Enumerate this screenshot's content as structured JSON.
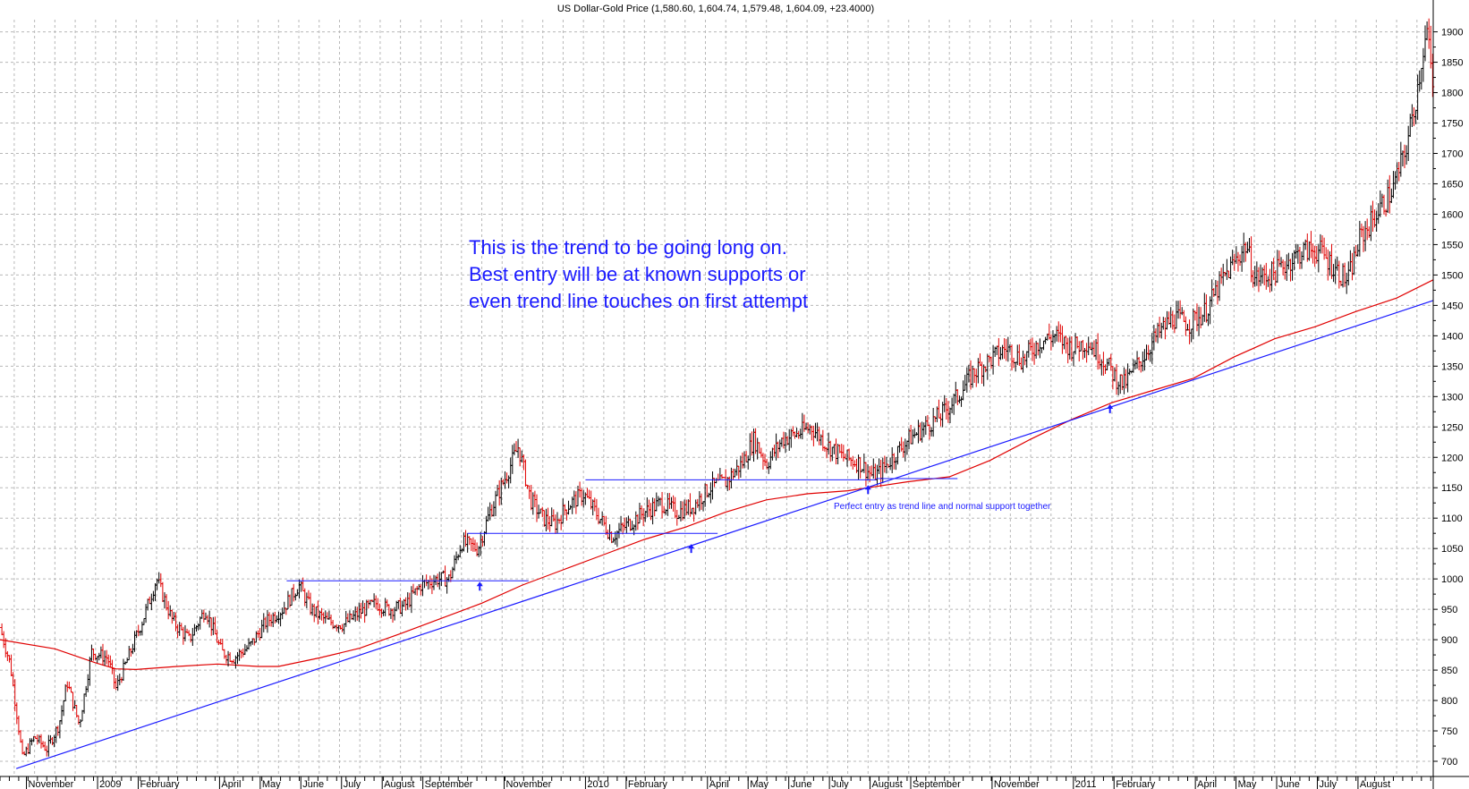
{
  "colors": {
    "up_bar": "#000000",
    "down_bar": "#e00000",
    "moving_average": "#e00000",
    "trend_line": "#1a1aff",
    "support_lines": "#1a1aff",
    "annotation": "#1a1aff",
    "grid": "#b8b8b8"
  },
  "chart_data": {
    "type": "candlestick",
    "title": "US Dollar-Gold Price (1,580.60, 1,604.74, 1,579.48, 1,604.09, +23.4000)",
    "ylim": [
      675,
      1920
    ],
    "y_ticks": [
      700,
      750,
      800,
      850,
      900,
      950,
      1000,
      1050,
      1100,
      1150,
      1200,
      1250,
      1300,
      1350,
      1400,
      1450,
      1500,
      1550,
      1600,
      1650,
      1700,
      1750,
      1800,
      1850,
      1900
    ],
    "x_range_months": [
      -0.35,
      34.9
    ],
    "x_labels": [
      {
        "label": "November",
        "m": 0.3
      },
      {
        "label": "2009",
        "m": 2.05
      },
      {
        "label": "February",
        "m": 3.05
      },
      {
        "label": "April",
        "m": 5.05
      },
      {
        "label": "May",
        "m": 6.05
      },
      {
        "label": "June",
        "m": 7.05
      },
      {
        "label": "July",
        "m": 8.05
      },
      {
        "label": "August",
        "m": 9.05
      },
      {
        "label": "September",
        "m": 10.05
      },
      {
        "label": "November",
        "m": 12.05
      },
      {
        "label": "2010",
        "m": 14.05
      },
      {
        "label": "February",
        "m": 15.05
      },
      {
        "label": "April",
        "m": 17.05
      },
      {
        "label": "May",
        "m": 18.05
      },
      {
        "label": "June",
        "m": 19.05
      },
      {
        "label": "July",
        "m": 20.05
      },
      {
        "label": "August",
        "m": 21.05
      },
      {
        "label": "September",
        "m": 22.05
      },
      {
        "label": "November",
        "m": 24.05
      },
      {
        "label": "2011",
        "m": 26.05
      },
      {
        "label": "February",
        "m": 27.05
      },
      {
        "label": "April",
        "m": 29.05
      },
      {
        "label": "May",
        "m": 30.05
      },
      {
        "label": "June",
        "m": 31.05
      },
      {
        "label": "July",
        "m": 32.05
      },
      {
        "label": "August",
        "m": 33.05
      }
    ],
    "price_path": [
      [
        -0.35,
        920
      ],
      [
        -0.1,
        860
      ],
      [
        0.1,
        760
      ],
      [
        0.2,
        705
      ],
      [
        0.5,
        740
      ],
      [
        0.8,
        720
      ],
      [
        1.1,
        760
      ],
      [
        1.3,
        830
      ],
      [
        1.6,
        760
      ],
      [
        1.9,
        880
      ],
      [
        2.3,
        870
      ],
      [
        2.5,
        820
      ],
      [
        2.8,
        870
      ],
      [
        3.2,
        940
      ],
      [
        3.5,
        1000
      ],
      [
        3.9,
        930
      ],
      [
        4.3,
        900
      ],
      [
        4.7,
        950
      ],
      [
        5.1,
        880
      ],
      [
        5.4,
        870
      ],
      [
        5.8,
        890
      ],
      [
        6.2,
        930
      ],
      [
        6.6,
        950
      ],
      [
        7.0,
        990
      ],
      [
        7.3,
        950
      ],
      [
        7.7,
        930
      ],
      [
        8.1,
        925
      ],
      [
        8.5,
        945
      ],
      [
        8.9,
        960
      ],
      [
        9.2,
        950
      ],
      [
        9.6,
        955
      ],
      [
        10.0,
        990
      ],
      [
        10.4,
        1000
      ],
      [
        10.7,
        1000
      ],
      [
        11.0,
        1060
      ],
      [
        11.4,
        1050
      ],
      [
        11.7,
        1110
      ],
      [
        12.1,
        1170
      ],
      [
        12.4,
        1218
      ],
      [
        12.7,
        1130
      ],
      [
        13.0,
        1100
      ],
      [
        13.3,
        1090
      ],
      [
        13.6,
        1120
      ],
      [
        14.0,
        1140
      ],
      [
        14.3,
        1110
      ],
      [
        14.7,
        1070
      ],
      [
        15.1,
        1090
      ],
      [
        15.5,
        1110
      ],
      [
        15.9,
        1125
      ],
      [
        16.3,
        1110
      ],
      [
        16.7,
        1120
      ],
      [
        17.1,
        1150
      ],
      [
        17.5,
        1160
      ],
      [
        17.9,
        1190
      ],
      [
        18.2,
        1230
      ],
      [
        18.5,
        1190
      ],
      [
        18.9,
        1230
      ],
      [
        19.3,
        1240
      ],
      [
        19.6,
        1250
      ],
      [
        20.0,
        1220
      ],
      [
        20.4,
        1200
      ],
      [
        20.8,
        1190
      ],
      [
        21.1,
        1170
      ],
      [
        21.3,
        1175
      ],
      [
        21.6,
        1200
      ],
      [
        22.0,
        1230
      ],
      [
        22.4,
        1250
      ],
      [
        22.8,
        1270
      ],
      [
        23.2,
        1300
      ],
      [
        23.6,
        1340
      ],
      [
        24.0,
        1360
      ],
      [
        24.4,
        1380
      ],
      [
        24.8,
        1360
      ],
      [
        25.2,
        1390
      ],
      [
        25.6,
        1400
      ],
      [
        26.0,
        1380
      ],
      [
        26.4,
        1390
      ],
      [
        26.8,
        1360
      ],
      [
        27.1,
        1330
      ],
      [
        27.3,
        1320
      ],
      [
        27.7,
        1360
      ],
      [
        28.1,
        1400
      ],
      [
        28.5,
        1430
      ],
      [
        28.9,
        1420
      ],
      [
        29.3,
        1440
      ],
      [
        29.7,
        1490
      ],
      [
        30.0,
        1520
      ],
      [
        30.3,
        1550
      ],
      [
        30.5,
        1495
      ],
      [
        30.9,
        1500
      ],
      [
        31.3,
        1520
      ],
      [
        31.7,
        1540
      ],
      [
        32.1,
        1540
      ],
      [
        32.5,
        1510
      ],
      [
        32.8,
        1490
      ],
      [
        33.1,
        1560
      ],
      [
        33.5,
        1600
      ],
      [
        33.9,
        1640
      ],
      [
        34.2,
        1700
      ],
      [
        34.45,
        1780
      ],
      [
        34.65,
        1870
      ],
      [
        34.75,
        1900
      ],
      [
        34.9,
        1800
      ]
    ],
    "moving_average": [
      [
        -0.35,
        900
      ],
      [
        1.0,
        885
      ],
      [
        2.0,
        862
      ],
      [
        2.5,
        852
      ],
      [
        3.0,
        851
      ],
      [
        4.0,
        856
      ],
      [
        5.0,
        860
      ],
      [
        6.0,
        856
      ],
      [
        6.5,
        856
      ],
      [
        7.5,
        870
      ],
      [
        8.5,
        886
      ],
      [
        9.5,
        910
      ],
      [
        10.5,
        935
      ],
      [
        11.5,
        960
      ],
      [
        12.5,
        990
      ],
      [
        13.5,
        1015
      ],
      [
        14.5,
        1040
      ],
      [
        15.5,
        1065
      ],
      [
        16.5,
        1085
      ],
      [
        17.5,
        1110
      ],
      [
        18.5,
        1130
      ],
      [
        19.5,
        1140
      ],
      [
        20.5,
        1145
      ],
      [
        21.0,
        1150
      ],
      [
        22.0,
        1160
      ],
      [
        23.0,
        1168
      ],
      [
        24.0,
        1195
      ],
      [
        25.0,
        1230
      ],
      [
        26.0,
        1262
      ],
      [
        27.0,
        1290
      ],
      [
        28.0,
        1310
      ],
      [
        29.0,
        1330
      ],
      [
        30.0,
        1365
      ],
      [
        31.0,
        1395
      ],
      [
        32.0,
        1415
      ],
      [
        33.0,
        1440
      ],
      [
        34.0,
        1462
      ],
      [
        34.9,
        1492
      ]
    ],
    "trend_line": {
      "from": [
        0.05,
        688
      ],
      "to": [
        34.9,
        1458
      ]
    },
    "support_lines": [
      {
        "from": [
          6.7,
          997
        ],
        "to": [
          12.65,
          997
        ]
      },
      {
        "from": [
          11.15,
          1075
        ],
        "to": [
          17.3,
          1075
        ]
      },
      {
        "from": [
          14.05,
          1163
        ],
        "to": [
          21.2,
          1163
        ]
      },
      {
        "from": [
          21.2,
          1165
        ],
        "to": [
          23.2,
          1165
        ]
      }
    ],
    "entry_arrows": [
      {
        "m": 11.45,
        "price": 988
      },
      {
        "m": 16.65,
        "price": 1050
      },
      {
        "m": 21.0,
        "price": 1147
      },
      {
        "m": 26.95,
        "price": 1280
      }
    ],
    "annotations": {
      "main": [
        "This is the trend to be going long on.",
        "Best entry will be at known supports or",
        "even trend line touches on first attempt"
      ],
      "secondary": "Perfect entry as trend line and normal support together"
    }
  }
}
